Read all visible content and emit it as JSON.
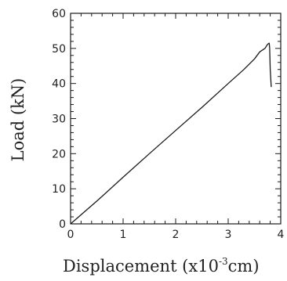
{
  "chart_data": {
    "type": "line",
    "title": "",
    "xlabel": {
      "prefix": "Displacement (x10",
      "superscript": "-3",
      "suffix": "cm)"
    },
    "ylabel": "Load (kN)",
    "xlim": [
      0,
      4
    ],
    "ylim": [
      0,
      60
    ],
    "x_ticks": [
      0,
      1,
      2,
      3,
      4
    ],
    "x_tick_labels": [
      "0",
      "1",
      "2",
      "3",
      "4"
    ],
    "y_ticks": [
      0,
      10,
      20,
      30,
      40,
      50,
      60
    ],
    "y_tick_labels": [
      "0",
      "10",
      "20",
      "30",
      "40",
      "50",
      "60"
    ],
    "grid": false,
    "series": [
      {
        "x": [
          0,
          0.5,
          1.0,
          1.5,
          2.0,
          2.5,
          3.0,
          3.3,
          3.5,
          3.6,
          3.7,
          3.75,
          3.78,
          3.79,
          3.8,
          3.82
        ],
        "y": [
          0,
          6.5,
          13.3,
          20.0,
          26.6,
          33.2,
          40.0,
          44.0,
          47.0,
          49.0,
          50.0,
          51.2,
          51.5,
          50.0,
          44.0,
          39.0
        ]
      }
    ],
    "colors": {
      "line": "#1a1a1a",
      "axis": "#1a1a1a",
      "background": "#ffffff"
    }
  }
}
